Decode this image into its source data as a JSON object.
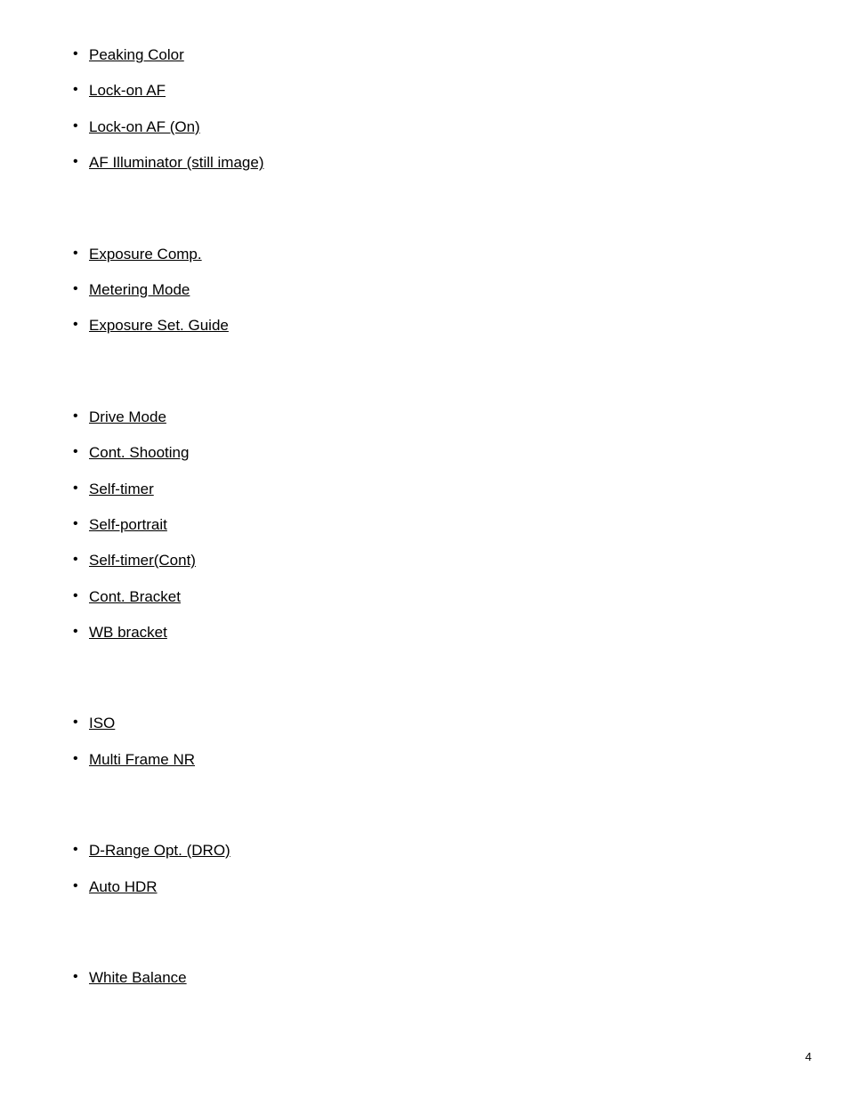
{
  "page_number": "4",
  "text_color": "#000000",
  "background_color": "#ffffff",
  "link_fontsize": 17,
  "sections": [
    {
      "items": [
        "Peaking Color",
        "Lock-on AF",
        "Lock-on AF (On)",
        "AF Illuminator (still image)"
      ]
    },
    {
      "items": [
        "Exposure Comp.",
        "Metering Mode",
        "Exposure Set. Guide"
      ]
    },
    {
      "items": [
        "Drive Mode",
        "Cont. Shooting",
        "Self-timer",
        "Self-portrait",
        "Self-timer(Cont)",
        "Cont. Bracket",
        "WB bracket"
      ]
    },
    {
      "items": [
        "ISO",
        "Multi Frame NR"
      ]
    },
    {
      "items": [
        "D-Range Opt. (DRO)",
        "Auto HDR"
      ]
    },
    {
      "items": [
        "White Balance"
      ]
    }
  ]
}
